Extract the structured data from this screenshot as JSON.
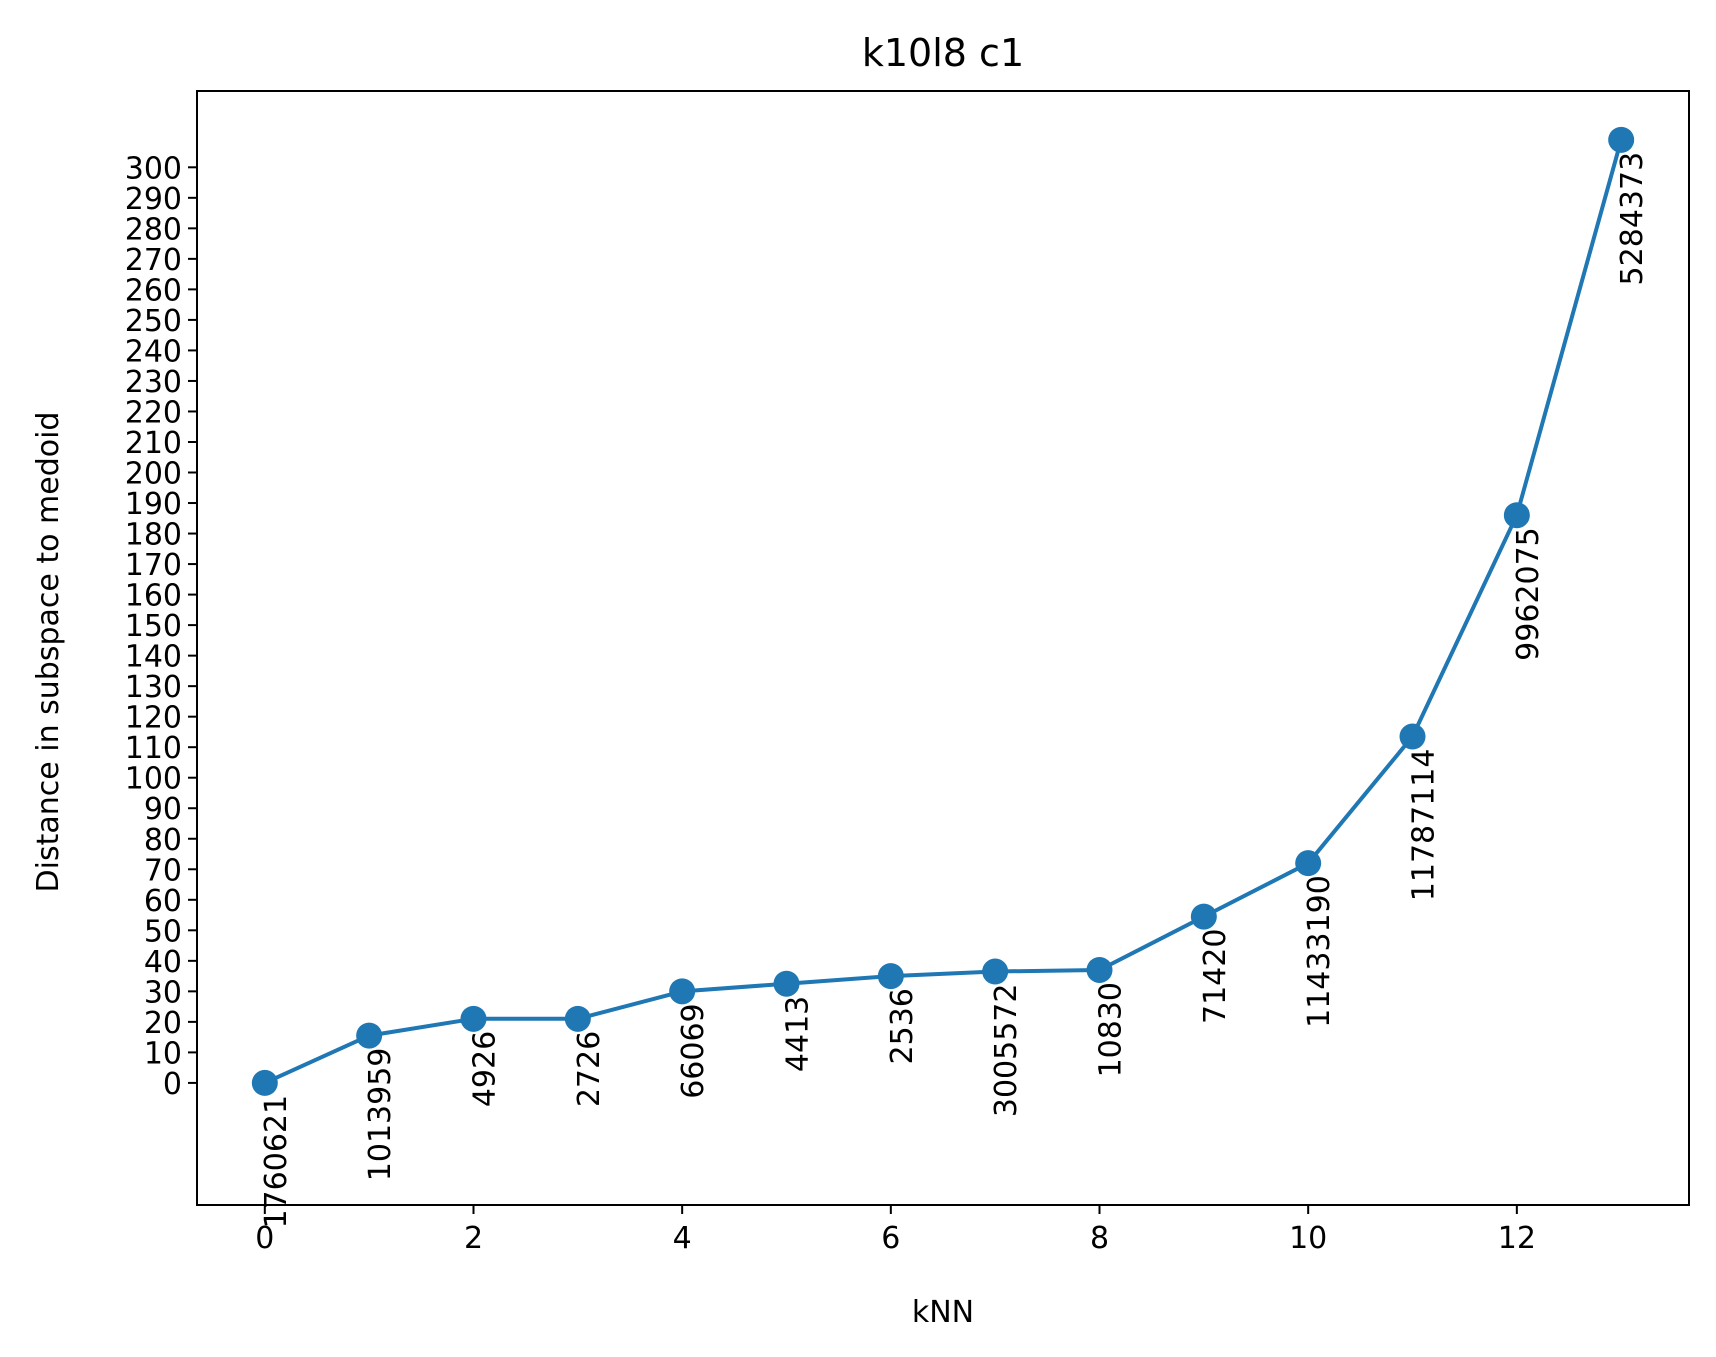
{
  "chart_data": {
    "type": "line",
    "title": "k10l8 c1",
    "xlabel": "kNN",
    "ylabel": "Distance in subspace to medoid",
    "xlim": [
      -0.65,
      13.65
    ],
    "ylim": [
      -40,
      325
    ],
    "x_ticks": [
      0,
      2,
      4,
      6,
      8,
      10,
      12
    ],
    "y_ticks": [
      0,
      10,
      20,
      30,
      40,
      50,
      60,
      70,
      80,
      90,
      100,
      110,
      120,
      130,
      140,
      150,
      160,
      170,
      180,
      190,
      200,
      210,
      220,
      230,
      240,
      250,
      260,
      270,
      280,
      290,
      300
    ],
    "grid": false,
    "color": "#1f77b4",
    "series": [
      {
        "x": [
          0,
          1,
          2,
          3,
          4,
          5,
          6,
          7,
          8,
          9,
          10,
          11,
          12,
          13
        ],
        "values": [
          0,
          15.5,
          21,
          21,
          30,
          32.5,
          35,
          36.5,
          37,
          54.5,
          72,
          113.5,
          186,
          309
        ],
        "point_labels": [
          "1760621",
          "1013959",
          "4926",
          "2726",
          "66069",
          "4413",
          "2536",
          "3005572",
          "10830",
          "71420",
          "11433190",
          "11787114",
          "9962075",
          "5284373"
        ]
      }
    ]
  }
}
